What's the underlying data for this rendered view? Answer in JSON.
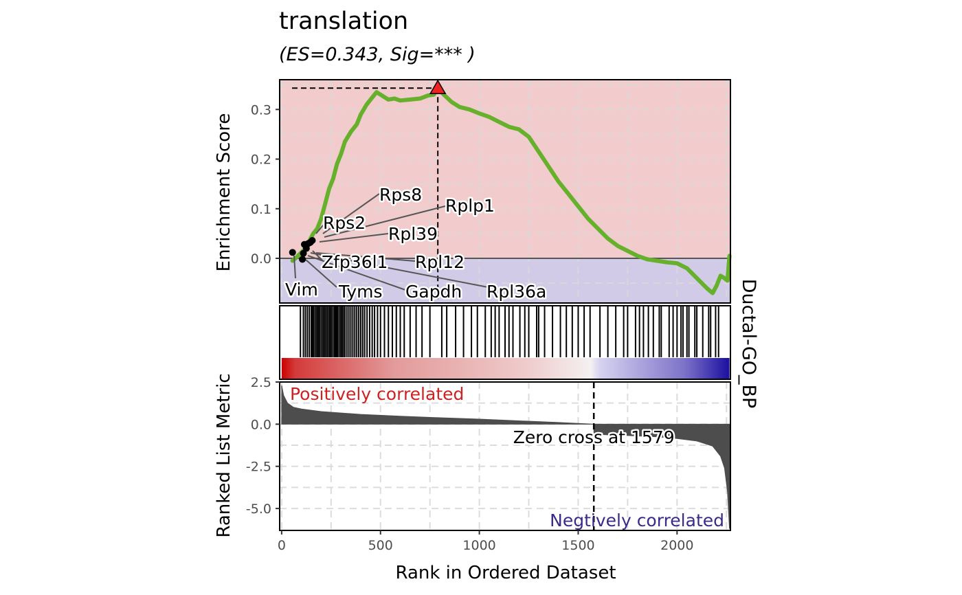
{
  "chart_data": {
    "type": "line",
    "title": "translation",
    "subtitle": "(ES=0.343, Sig=*** )",
    "strip_label": "Ductal-GO_BP",
    "xlabel": "Rank in Ordered Dataset",
    "xlim": [
      -10,
      2270
    ],
    "x_ticks": [
      0,
      500,
      1000,
      1500,
      2000
    ],
    "x_tick_labels": [
      "0",
      "500",
      "1000",
      "1500",
      "2000"
    ],
    "enrichment": {
      "ylabel": "Enrichment Score",
      "ylim": [
        -0.09,
        0.36
      ],
      "y_ticks": [
        0.0,
        0.1,
        0.2,
        0.3
      ],
      "y_tick_labels": [
        "0.0",
        "0.1",
        "0.2",
        "0.3"
      ],
      "es": 0.343,
      "peak_rank": 790,
      "line_color": "#66b02c",
      "positive_fill": "#f2cccc",
      "negative_fill": "#d1cbe8",
      "peak_marker_color": "#ee2222",
      "curve": [
        [
          55,
          -0.005
        ],
        [
          70,
          0.0
        ],
        [
          95,
          0.01
        ],
        [
          120,
          0.02
        ],
        [
          140,
          0.035
        ],
        [
          160,
          0.05
        ],
        [
          180,
          0.06
        ],
        [
          200,
          0.08
        ],
        [
          220,
          0.11
        ],
        [
          240,
          0.14
        ],
        [
          260,
          0.16
        ],
        [
          280,
          0.19
        ],
        [
          300,
          0.21
        ],
        [
          320,
          0.235
        ],
        [
          350,
          0.255
        ],
        [
          380,
          0.27
        ],
        [
          400,
          0.29
        ],
        [
          430,
          0.31
        ],
        [
          460,
          0.325
        ],
        [
          480,
          0.335
        ],
        [
          500,
          0.33
        ],
        [
          540,
          0.32
        ],
        [
          570,
          0.322
        ],
        [
          600,
          0.318
        ],
        [
          650,
          0.32
        ],
        [
          700,
          0.322
        ],
        [
          740,
          0.328
        ],
        [
          770,
          0.33
        ],
        [
          790,
          0.343
        ],
        [
          820,
          0.33
        ],
        [
          860,
          0.315
        ],
        [
          900,
          0.305
        ],
        [
          950,
          0.3
        ],
        [
          1000,
          0.292
        ],
        [
          1050,
          0.285
        ],
        [
          1100,
          0.275
        ],
        [
          1150,
          0.265
        ],
        [
          1200,
          0.26
        ],
        [
          1250,
          0.245
        ],
        [
          1300,
          0.215
        ],
        [
          1350,
          0.185
        ],
        [
          1400,
          0.155
        ],
        [
          1450,
          0.13
        ],
        [
          1500,
          0.105
        ],
        [
          1550,
          0.08
        ],
        [
          1600,
          0.06
        ],
        [
          1650,
          0.04
        ],
        [
          1700,
          0.025
        ],
        [
          1750,
          0.015
        ],
        [
          1800,
          0.005
        ],
        [
          1850,
          -0.002
        ],
        [
          1900,
          -0.005
        ],
        [
          1950,
          -0.008
        ],
        [
          2000,
          -0.01
        ],
        [
          2050,
          -0.02
        ],
        [
          2100,
          -0.04
        ],
        [
          2150,
          -0.06
        ],
        [
          2180,
          -0.07
        ],
        [
          2200,
          -0.055
        ],
        [
          2220,
          -0.035
        ],
        [
          2240,
          -0.04
        ],
        [
          2255,
          -0.045
        ],
        [
          2262,
          -0.01
        ],
        [
          2265,
          0.005
        ]
      ],
      "leading_points": [
        [
          55,
          0.012
        ],
        [
          105,
          -0.002
        ],
        [
          110,
          0.01
        ],
        [
          115,
          0.028
        ],
        [
          125,
          0.02
        ],
        [
          135,
          0.03
        ],
        [
          145,
          0.032
        ],
        [
          155,
          0.036
        ]
      ],
      "gene_labels": [
        "Rps8",
        "Rplp1",
        "Rps2",
        "Rpl39",
        "Zfp36l1",
        "Rpl12",
        "Vim",
        "Tyms",
        "Gapdh",
        "Rpl36a"
      ]
    },
    "hits": [
      95,
      110,
      120,
      130,
      140,
      150,
      155,
      162,
      170,
      178,
      185,
      192,
      200,
      208,
      215,
      222,
      230,
      238,
      245,
      252,
      260,
      268,
      275,
      282,
      290,
      298,
      305,
      312,
      320,
      330,
      340,
      350,
      360,
      370,
      380,
      390,
      400,
      410,
      420,
      432,
      445,
      458,
      470,
      485,
      500,
      520,
      540,
      560,
      580,
      600,
      620,
      650,
      680,
      710,
      750,
      810,
      835,
      880,
      920,
      960,
      990,
      1030,
      1060,
      1080,
      1100,
      1130,
      1150,
      1170,
      1205,
      1230,
      1250,
      1290,
      1300,
      1330,
      1370,
      1410,
      1440,
      1470,
      1500,
      1530,
      1560,
      1610,
      1650,
      1690,
      1730,
      1750,
      1790,
      1810,
      1830,
      1855,
      1880,
      1910,
      1920,
      1960,
      1980,
      2000,
      2020,
      2030,
      2050,
      2060,
      2090,
      2100,
      2130,
      2160,
      2170,
      2195,
      2210
    ],
    "gradient": {
      "high": "#cc0000",
      "mid": "#f5f0f0",
      "low": "#1a0fa0"
    },
    "ranked_metric": {
      "ylabel": "Ranked List Metric",
      "ylim": [
        -6.3,
        2.5
      ],
      "y_ticks": [
        2.5,
        0.0,
        -2.5,
        -5.0
      ],
      "y_tick_labels": [
        "2.5",
        "0.0",
        "-2.5",
        "-5.0"
      ],
      "zero_cross": 1579,
      "zero_cross_label": "Zero cross at 1579",
      "positive_label": "Positively correlated",
      "negative_label": "Negtively correlated",
      "positive_color": "#cc2222",
      "negative_color": "#3a2a8a",
      "bar_color": "#4d4d4d",
      "profile": [
        [
          0,
          2.3
        ],
        [
          10,
          1.7
        ],
        [
          30,
          1.25
        ],
        [
          60,
          1.0
        ],
        [
          100,
          0.9
        ],
        [
          200,
          0.75
        ],
        [
          400,
          0.58
        ],
        [
          600,
          0.47
        ],
        [
          800,
          0.38
        ],
        [
          1000,
          0.3
        ],
        [
          1200,
          0.2
        ],
        [
          1400,
          0.1
        ],
        [
          1578,
          0.0
        ],
        [
          1580,
          -0.6
        ],
        [
          1700,
          -0.65
        ],
        [
          1800,
          -0.7
        ],
        [
          1900,
          -0.75
        ],
        [
          2000,
          -0.85
        ],
        [
          2100,
          -1.0
        ],
        [
          2180,
          -1.3
        ],
        [
          2220,
          -1.9
        ],
        [
          2240,
          -2.6
        ],
        [
          2255,
          -4.0
        ],
        [
          2265,
          -6.2
        ]
      ]
    }
  }
}
